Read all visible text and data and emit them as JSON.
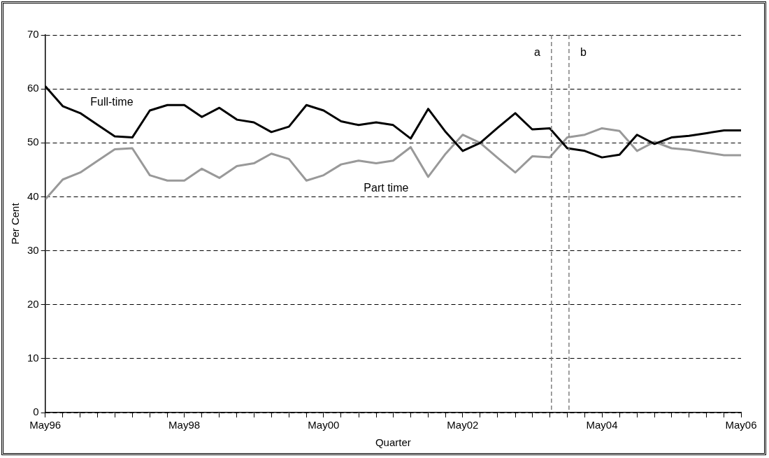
{
  "chart_data": {
    "type": "line",
    "xlabel": "Quarter",
    "ylabel": "Per Cent",
    "x": [
      "1996-05",
      "1996-08",
      "1996-11",
      "1997-02",
      "1997-05",
      "1997-08",
      "1997-11",
      "1998-02",
      "1998-05",
      "1998-08",
      "1998-11",
      "1999-02",
      "1999-05",
      "1999-08",
      "1999-11",
      "2000-02",
      "2000-05",
      "2000-08",
      "2000-11",
      "2001-02",
      "2001-05",
      "2001-08",
      "2001-11",
      "2002-02",
      "2002-05",
      "2002-08",
      "2002-11",
      "2003-02",
      "2003-05",
      "2003-08",
      "2003-11",
      "2004-02",
      "2004-05",
      "2004-08",
      "2004-11",
      "2005-02",
      "2005-05",
      "2005-08",
      "2005-11",
      "2006-02",
      "2006-05"
    ],
    "series": [
      {
        "name": "Full-time",
        "color": "#000000",
        "values": [
          60.5,
          56.8,
          55.5,
          53.3,
          51.2,
          51.0,
          56.0,
          57.0,
          57.0,
          54.8,
          56.5,
          54.3,
          53.8,
          52.0,
          53.0,
          57.0,
          56.0,
          54.0,
          53.3,
          53.8,
          53.3,
          50.8,
          56.3,
          52.0,
          48.5,
          50.0,
          52.8,
          55.5,
          52.5,
          52.7,
          49.0,
          48.5,
          47.3,
          47.8,
          51.5,
          49.8,
          51.0,
          51.3,
          51.8,
          52.3,
          52.3
        ]
      },
      {
        "name": "Part time",
        "color": "#999999",
        "values": [
          39.5,
          43.2,
          44.5,
          46.7,
          48.8,
          49.0,
          44.0,
          43.0,
          43.0,
          45.2,
          43.5,
          45.7,
          46.2,
          48.0,
          47.0,
          43.0,
          44.0,
          46.0,
          46.7,
          46.2,
          46.7,
          49.2,
          43.7,
          48.0,
          51.5,
          50.0,
          47.2,
          44.5,
          47.5,
          47.3,
          51.0,
          51.5,
          52.7,
          52.2,
          48.5,
          50.2,
          49.0,
          48.7,
          48.2,
          47.7,
          47.7
        ]
      }
    ],
    "xlim": [
      "1996-05",
      "2006-05"
    ],
    "xticks": [
      {
        "value": "1996-05",
        "label": "May96"
      },
      {
        "value": "1996-08",
        "label": null
      },
      {
        "value": "1996-11",
        "label": null
      },
      {
        "value": "1997-02",
        "label": null
      },
      {
        "value": "1997-05",
        "label": null
      },
      {
        "value": "1997-08",
        "label": null
      },
      {
        "value": "1997-11",
        "label": null
      },
      {
        "value": "1998-02",
        "label": null
      },
      {
        "value": "1998-05",
        "label": "May98"
      },
      {
        "value": "1998-08",
        "label": null
      },
      {
        "value": "1998-11",
        "label": null
      },
      {
        "value": "1999-02",
        "label": null
      },
      {
        "value": "1999-05",
        "label": null
      },
      {
        "value": "1999-08",
        "label": null
      },
      {
        "value": "1999-11",
        "label": null
      },
      {
        "value": "2000-02",
        "label": null
      },
      {
        "value": "2000-05",
        "label": "May00"
      },
      {
        "value": "2000-08",
        "label": null
      },
      {
        "value": "2000-11",
        "label": null
      },
      {
        "value": "2001-02",
        "label": null
      },
      {
        "value": "2001-05",
        "label": null
      },
      {
        "value": "2001-08",
        "label": null
      },
      {
        "value": "2001-11",
        "label": null
      },
      {
        "value": "2002-02",
        "label": null
      },
      {
        "value": "2002-05",
        "label": "May02"
      },
      {
        "value": "2002-08",
        "label": null
      },
      {
        "value": "2002-11",
        "label": null
      },
      {
        "value": "2003-02",
        "label": null
      },
      {
        "value": "2003-05",
        "label": null
      },
      {
        "value": "2003-08",
        "label": null
      },
      {
        "value": "2003-11",
        "label": null
      },
      {
        "value": "2004-02",
        "label": null
      },
      {
        "value": "2004-05",
        "label": "May04"
      },
      {
        "value": "2004-08",
        "label": null
      },
      {
        "value": "2004-11",
        "label": null
      },
      {
        "value": "2005-02",
        "label": null
      },
      {
        "value": "2005-05",
        "label": null
      },
      {
        "value": "2005-08",
        "label": null
      },
      {
        "value": "2005-11",
        "label": null
      },
      {
        "value": "2006-02",
        "label": null
      },
      {
        "value": "2006-05",
        "label": "May06"
      }
    ],
    "ylim": [
      0,
      70
    ],
    "yticks": [
      0,
      10,
      20,
      30,
      40,
      50,
      60,
      70
    ],
    "ref_lines": [
      {
        "axis": "x",
        "value": "2003-08-10",
        "label": "a",
        "color": "#808080",
        "line_style": "dashed"
      },
      {
        "axis": "x",
        "value": "2003-11-10",
        "label": "b",
        "color": "#808080",
        "line_style": "dashed"
      }
    ],
    "grid": "y",
    "legend": false,
    "marker": "none",
    "line_style": "solid"
  }
}
